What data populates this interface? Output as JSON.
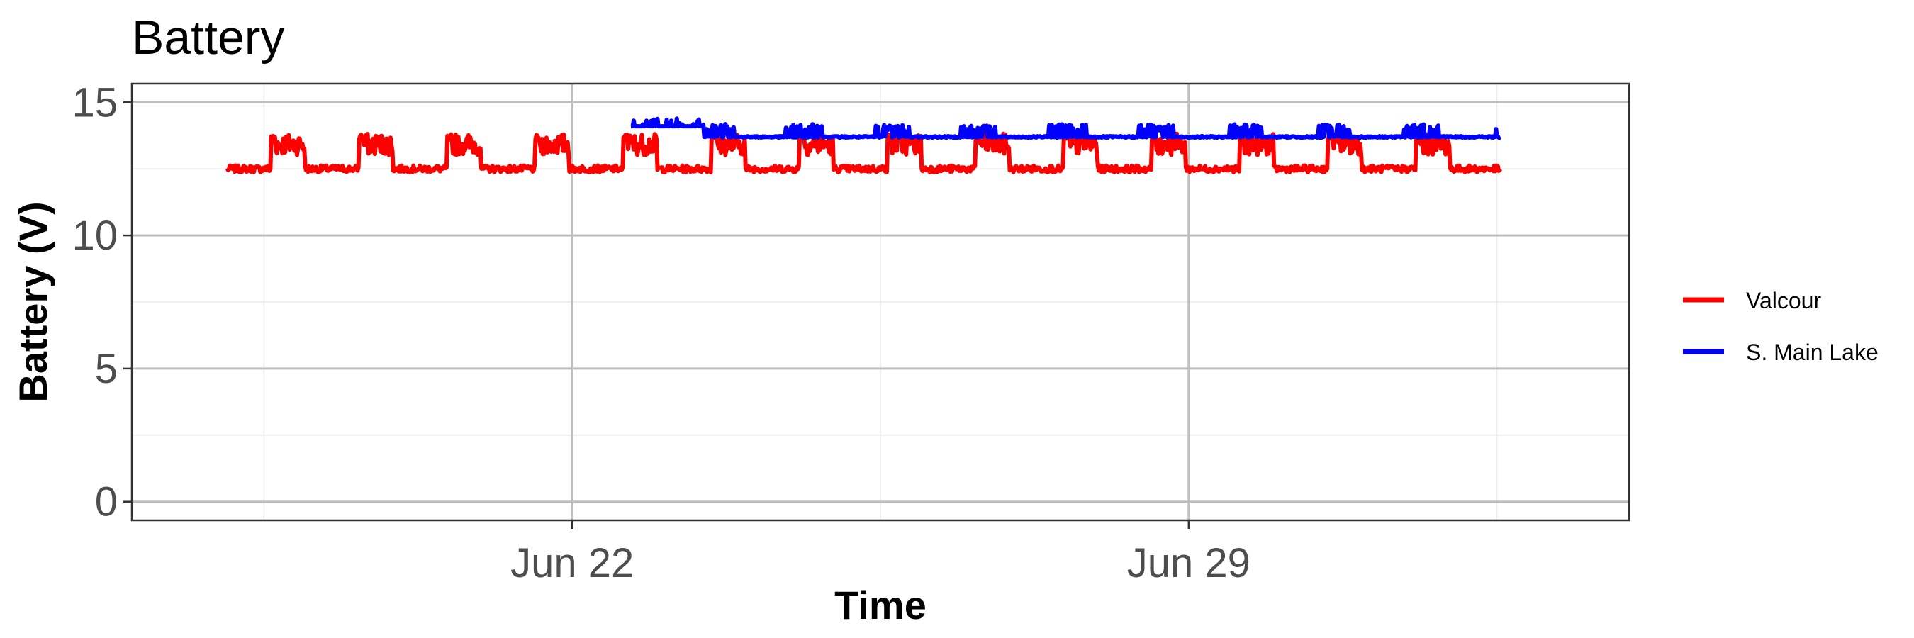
{
  "chart_data": {
    "type": "line",
    "title": "Battery",
    "xlabel": "Time",
    "ylabel": "Battery (V)",
    "x_axis": {
      "type": "date",
      "range": [
        "2022-06-17",
        "2022-07-04"
      ],
      "major_ticks": [
        {
          "date": "2022-06-22",
          "label": "Jun 22"
        },
        {
          "date": "2022-06-29",
          "label": "Jun 29"
        }
      ],
      "minor_gridlines": [
        "2022-06-18.5",
        "2022-06-25.5",
        "2022-07-02.5"
      ]
    },
    "y_axis": {
      "range": [
        -0.7,
        15.7
      ],
      "major_ticks": [
        0,
        5,
        10,
        15
      ],
      "minor_gridlines": [
        2.5,
        7.5,
        12.5
      ]
    },
    "grid": true,
    "legend_position": "right",
    "series": [
      {
        "name": "Valcour",
        "color": "#ff0000",
        "start": "2022-06-18 02:00",
        "end": "2022-07-02 13:00",
        "night_level_v": 12.5,
        "day_level_v": 13.3,
        "day_peak_v": 13.8,
        "pattern": "daily cycle: rises to about 13.3-13.8 V each afternoon, falls to about 12.5 V at night"
      },
      {
        "name": "S. Main Lake",
        "color": "#0000ff",
        "start": "2022-06-22 16:00",
        "end": "2022-07-02 13:00",
        "initial_level_v": 14.1,
        "base_level_v": 13.7,
        "spike_level_v": 14.1,
        "pattern": "about 14.1-14.4 V until Jun 23 midday, then holds near 13.7 V with daily spikes to about 14.1 V"
      }
    ]
  }
}
